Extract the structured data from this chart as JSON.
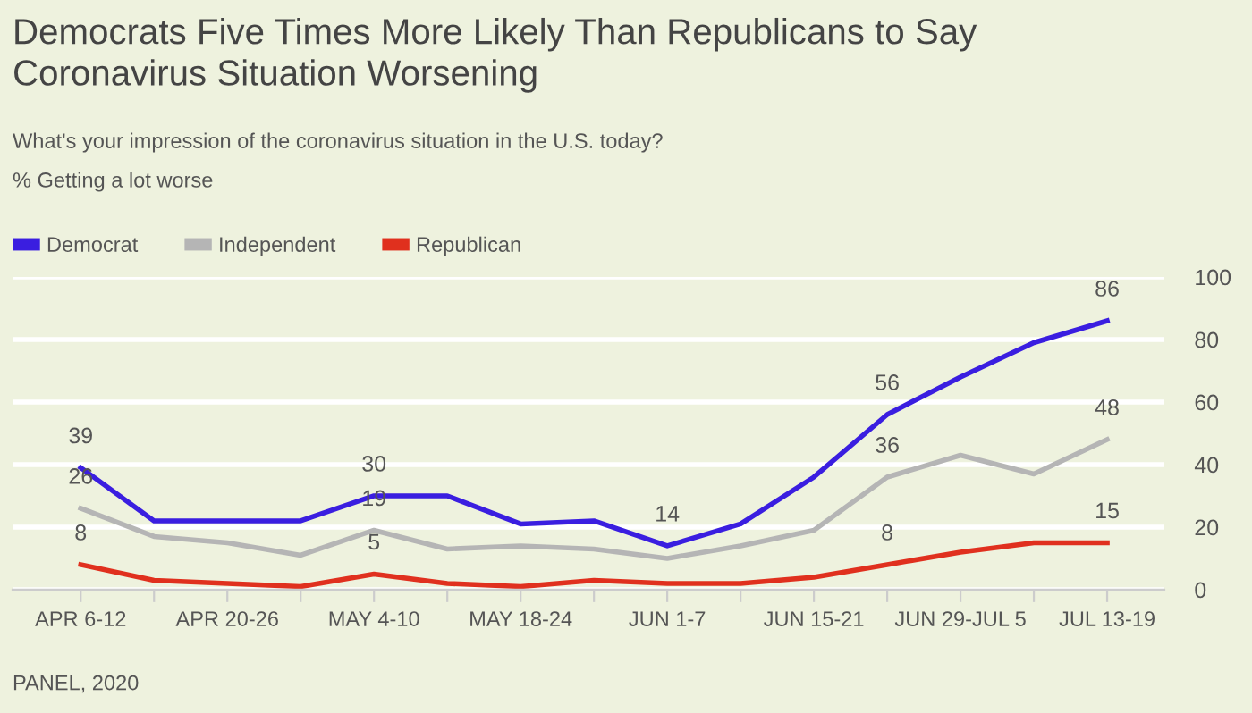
{
  "chart_data": {
    "type": "line",
    "title": "Democrats Five Times More Likely Than Republicans to Say\nCoronavirus Situation Worsening",
    "subtitle": "What's your impression of the coronavirus situation in the U.S. today?",
    "ylabel": "% Getting a lot worse",
    "categories": [
      "APR 6-12",
      null,
      "APR 20-26",
      null,
      "MAY 4-10",
      null,
      "MAY 18-24",
      null,
      "JUN 1-7",
      null,
      "JUN 15-21",
      null,
      "JUN 29-JUL 5",
      null,
      "JUL 13-19"
    ],
    "series": [
      {
        "name": "Democrat",
        "color": "#3a1ee0",
        "values": [
          39,
          22,
          22,
          22,
          30,
          30,
          21,
          22,
          14,
          21,
          36,
          56,
          68,
          79,
          86
        ],
        "value_labels": [
          "39",
          null,
          null,
          null,
          "30",
          null,
          null,
          null,
          "14",
          null,
          null,
          "56",
          null,
          null,
          "86"
        ]
      },
      {
        "name": "Independent",
        "color": "#b5b5b5",
        "values": [
          26,
          17,
          15,
          11,
          19,
          13,
          14,
          13,
          10,
          14,
          19,
          36,
          43,
          37,
          48
        ],
        "value_labels": [
          "26",
          null,
          null,
          null,
          "19",
          null,
          null,
          null,
          null,
          null,
          null,
          "36",
          null,
          null,
          "48"
        ]
      },
      {
        "name": "Republican",
        "color": "#e0301e",
        "values": [
          8,
          3,
          2,
          1,
          5,
          2,
          1,
          3,
          2,
          2,
          4,
          8,
          12,
          15,
          15
        ],
        "value_labels": [
          "8",
          null,
          null,
          null,
          "5",
          null,
          null,
          null,
          null,
          null,
          null,
          "8",
          null,
          null,
          "15"
        ]
      }
    ],
    "ylim": [
      0,
      100
    ],
    "yticks": [
      0,
      20,
      40,
      60,
      80,
      100
    ],
    "grid": "y",
    "legend": "top left",
    "marker": "none",
    "line_style": "solid",
    "annotations": [
      "PANEL, 2020"
    ]
  }
}
